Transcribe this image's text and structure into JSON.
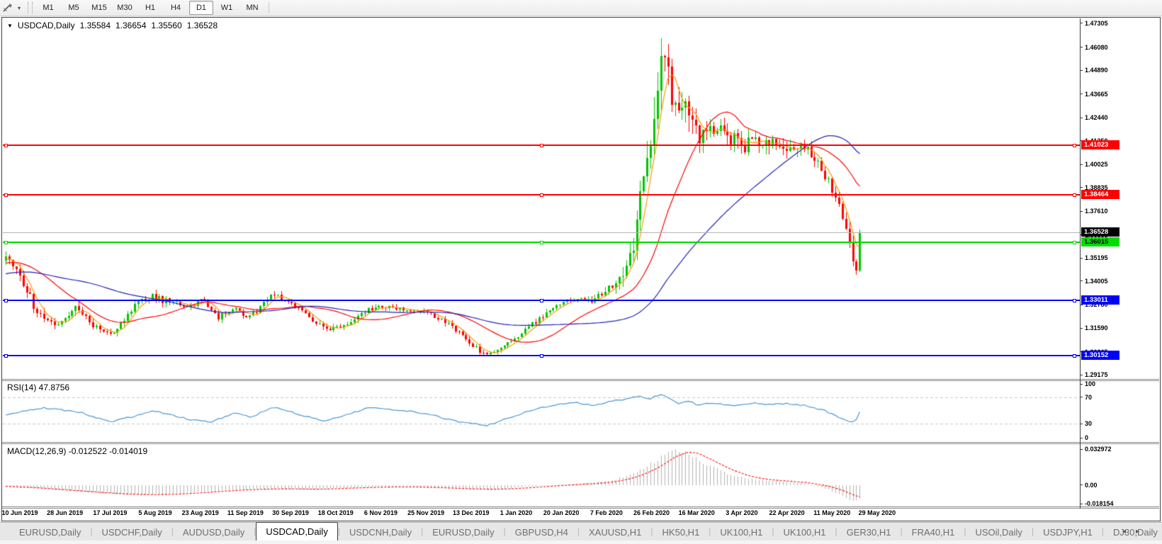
{
  "toolbar": {
    "drawing_tool_icon": "cursor-draw-icon",
    "dropdown_glyph": "▾",
    "timeframes": [
      {
        "label": "M1",
        "active": false
      },
      {
        "label": "M5",
        "active": false
      },
      {
        "label": "M15",
        "active": false
      },
      {
        "label": "M30",
        "active": false
      },
      {
        "label": "H1",
        "active": false
      },
      {
        "label": "H4",
        "active": false
      },
      {
        "label": "D1",
        "active": true
      },
      {
        "label": "W1",
        "active": false
      },
      {
        "label": "MN",
        "active": false
      }
    ]
  },
  "chart": {
    "title_symbol": "USDCAD,Daily",
    "title_open": "1.35584",
    "title_high": "1.36654",
    "title_low": "1.35560",
    "title_close": "1.36528",
    "collapse_glyph": "▼"
  },
  "rsi_panel": {
    "label": "RSI(14) 47.8756",
    "ticks": [
      "100",
      "70",
      "30",
      "0"
    ]
  },
  "macd_panel": {
    "label": "MACD(12,26,9) -0.012522 -0.014019",
    "ticks": [
      "0.032972",
      "0.00",
      "-0.018154"
    ]
  },
  "tabs": {
    "items": [
      {
        "label": "EURUSD,Daily",
        "active": false
      },
      {
        "label": "USDCHF,Daily",
        "active": false
      },
      {
        "label": "AUDUSD,Daily",
        "active": false
      },
      {
        "label": "USDCAD,Daily",
        "active": true
      },
      {
        "label": "USDCNH,Daily",
        "active": false
      },
      {
        "label": "EURUSD,Daily",
        "active": false
      },
      {
        "label": "GBPUSD,H4",
        "active": false
      },
      {
        "label": "XAUUSD,H1",
        "active": false
      },
      {
        "label": "HK50,H1",
        "active": false
      },
      {
        "label": "UK100,H1",
        "active": false
      },
      {
        "label": "UK100,H1",
        "active": false
      },
      {
        "label": "GER30,H1",
        "active": false
      },
      {
        "label": "FRA40,H1",
        "active": false
      },
      {
        "label": "USOil,Daily",
        "active": false
      },
      {
        "label": "USDJPY,H1",
        "active": false
      },
      {
        "label": "DJ30,Daily",
        "active": false
      }
    ],
    "scroll_left_glyph": "◂",
    "scroll_right_glyph": "▸"
  },
  "colors": {
    "up": "#00c400",
    "down": "#ff0000",
    "ma_fast": "#ff9900",
    "ma_mid": "#ff0000",
    "ma_slow": "#2222b8",
    "rsi_line": "#4a96d2",
    "rsi_level_dash": "#c8c8c8",
    "macd_hist": "#b2b2b2",
    "macd_signal": "#ff0000",
    "level_red": "#ff0000",
    "level_green": "#00dd00",
    "level_blue": "#0000ff",
    "current_line": "#b4b4b4",
    "current_label_bg": "#000000"
  },
  "chart_data": {
    "type": "candlestick",
    "symbol": "USDCAD",
    "timeframe": "Daily",
    "ohlc": {
      "open": 1.35584,
      "high": 1.36654,
      "low": 1.3556,
      "close": 1.36528
    },
    "price_axis": {
      "ylim": [
        1.2896,
        1.4756
      ],
      "ticks": [
        "1.47305",
        "1.46080",
        "1.44890",
        "1.43665",
        "1.42440",
        "1.41250",
        "1.40025",
        "1.38835",
        "1.37610",
        "1.36385",
        "1.35195",
        "1.34005",
        "1.32780",
        "1.31590",
        "1.30365",
        "1.29175"
      ]
    },
    "levels": [
      {
        "price": 1.41023,
        "label": "1.41023",
        "color": "#ff0000",
        "text": "#ffffff"
      },
      {
        "price": 1.38464,
        "label": "1.38464",
        "color": "#ff0000",
        "text": "#ffffff"
      },
      {
        "price": 1.36015,
        "label": "1.36015",
        "color": "#00dd00",
        "text": "#000000"
      },
      {
        "price": 1.33011,
        "label": "1.33011",
        "color": "#0000ff",
        "text": "#ffffff"
      },
      {
        "price": 1.30152,
        "label": "1.30152",
        "color": "#0000ff",
        "text": "#ffffff"
      }
    ],
    "current_price": {
      "value": 1.36528,
      "label": "1.36528"
    },
    "candles": {
      "n": 246,
      "keypoints": [
        [
          0.0,
          1.3525,
          0.0045
        ],
        [
          0.018,
          1.3415,
          0.005
        ],
        [
          0.039,
          1.322,
          0.005
        ],
        [
          0.06,
          1.318,
          0.004
        ],
        [
          0.081,
          1.3265,
          0.004
        ],
        [
          0.105,
          1.316,
          0.0035
        ],
        [
          0.126,
          1.314,
          0.0035
        ],
        [
          0.155,
          1.33,
          0.004
        ],
        [
          0.172,
          1.332,
          0.0045
        ],
        [
          0.193,
          1.329,
          0.004
        ],
        [
          0.213,
          1.3275,
          0.0035
        ],
        [
          0.234,
          1.33,
          0.004
        ],
        [
          0.247,
          1.321,
          0.0035
        ],
        [
          0.267,
          1.326,
          0.0035
        ],
        [
          0.284,
          1.3205,
          0.003
        ],
        [
          0.313,
          1.333,
          0.0035
        ],
        [
          0.334,
          1.329,
          0.003
        ],
        [
          0.354,
          1.322,
          0.003
        ],
        [
          0.375,
          1.315,
          0.003
        ],
        [
          0.396,
          1.3165,
          0.003
        ],
        [
          0.417,
          1.3235,
          0.003
        ],
        [
          0.437,
          1.3275,
          0.003
        ],
        [
          0.462,
          1.3255,
          0.0028
        ],
        [
          0.487,
          1.3245,
          0.0028
        ],
        [
          0.512,
          1.32,
          0.0028
        ],
        [
          0.533,
          1.313,
          0.003
        ],
        [
          0.549,
          1.306,
          0.003
        ],
        [
          0.564,
          1.3015,
          0.003
        ],
        [
          0.583,
          1.306,
          0.0028
        ],
        [
          0.599,
          1.311,
          0.0028
        ],
        [
          0.624,
          1.3205,
          0.003
        ],
        [
          0.649,
          1.328,
          0.003
        ],
        [
          0.666,
          1.331,
          0.0032
        ],
        [
          0.686,
          1.3295,
          0.0035
        ],
        [
          0.705,
          1.337,
          0.005
        ],
        [
          0.72,
          1.343,
          0.008
        ],
        [
          0.734,
          1.358,
          0.012
        ],
        [
          0.745,
          1.39,
          0.016
        ],
        [
          0.756,
          1.415,
          0.02
        ],
        [
          0.766,
          1.448,
          0.028
        ],
        [
          0.777,
          1.442,
          0.024
        ],
        [
          0.788,
          1.427,
          0.018
        ],
        [
          0.8,
          1.43,
          0.015
        ],
        [
          0.812,
          1.409,
          0.014
        ],
        [
          0.823,
          1.421,
          0.012
        ],
        [
          0.837,
          1.417,
          0.01
        ],
        [
          0.85,
          1.414,
          0.01
        ],
        [
          0.863,
          1.408,
          0.009
        ],
        [
          0.875,
          1.414,
          0.009
        ],
        [
          0.887,
          1.41,
          0.008
        ],
        [
          0.9,
          1.412,
          0.008
        ],
        [
          0.912,
          1.406,
          0.007
        ],
        [
          0.925,
          1.41,
          0.007
        ],
        [
          0.937,
          1.408,
          0.006
        ],
        [
          0.95,
          1.402,
          0.006
        ],
        [
          0.962,
          1.393,
          0.006
        ],
        [
          0.974,
          1.382,
          0.006
        ],
        [
          0.984,
          1.367,
          0.006
        ],
        [
          0.991,
          1.353,
          0.007
        ],
        [
          0.997,
          1.342,
          0.009
        ],
        [
          1.0,
          1.36528,
          0.014
        ]
      ]
    },
    "moving_averages": [
      {
        "period": 5,
        "color": "#ff9900"
      },
      {
        "period": 22,
        "color": "#ff0000"
      },
      {
        "period": 55,
        "color": "#2222b8"
      }
    ],
    "rsi": {
      "period": 14,
      "current": 47.8756,
      "levels": [
        70,
        30
      ],
      "ylim": [
        0,
        100
      ],
      "keypoints": [
        [
          0.0,
          44
        ],
        [
          0.043,
          54
        ],
        [
          0.085,
          48
        ],
        [
          0.122,
          33
        ],
        [
          0.147,
          40
        ],
        [
          0.172,
          50
        ],
        [
          0.197,
          42
        ],
        [
          0.217,
          36
        ],
        [
          0.242,
          33
        ],
        [
          0.267,
          46
        ],
        [
          0.288,
          40
        ],
        [
          0.313,
          55
        ],
        [
          0.342,
          45
        ],
        [
          0.373,
          33
        ],
        [
          0.402,
          45
        ],
        [
          0.427,
          55
        ],
        [
          0.455,
          50
        ],
        [
          0.48,
          48
        ],
        [
          0.508,
          40
        ],
        [
          0.534,
          32
        ],
        [
          0.564,
          27
        ],
        [
          0.587,
          38
        ],
        [
          0.62,
          52
        ],
        [
          0.649,
          60
        ],
        [
          0.667,
          63
        ],
        [
          0.687,
          57
        ],
        [
          0.707,
          64
        ],
        [
          0.725,
          67
        ],
        [
          0.742,
          72
        ],
        [
          0.753,
          67
        ],
        [
          0.766,
          74
        ],
        [
          0.778,
          69
        ],
        [
          0.788,
          61
        ],
        [
          0.8,
          65
        ],
        [
          0.812,
          57
        ],
        [
          0.823,
          62
        ],
        [
          0.84,
          59
        ],
        [
          0.856,
          57
        ],
        [
          0.875,
          62
        ],
        [
          0.89,
          59
        ],
        [
          0.906,
          61
        ],
        [
          0.925,
          59
        ],
        [
          0.941,
          57
        ],
        [
          0.958,
          50
        ],
        [
          0.973,
          41
        ],
        [
          0.986,
          34
        ],
        [
          0.994,
          31
        ],
        [
          1.0,
          47.9
        ]
      ]
    },
    "macd": {
      "params": "12,26,9",
      "macd_value": -0.012522,
      "signal_value": -0.014019,
      "axis_max": 0.032972,
      "axis_min": -0.018154,
      "keypoints": [
        [
          0.0,
          -0.0012
        ],
        [
          0.043,
          -0.0035
        ],
        [
          0.093,
          -0.0065
        ],
        [
          0.143,
          -0.0085
        ],
        [
          0.17,
          -0.0088
        ],
        [
          0.205,
          -0.0075
        ],
        [
          0.24,
          -0.0055
        ],
        [
          0.275,
          -0.004
        ],
        [
          0.309,
          -0.0032
        ],
        [
          0.35,
          -0.0038
        ],
        [
          0.392,
          -0.0028
        ],
        [
          0.433,
          -0.0016
        ],
        [
          0.475,
          -0.0018
        ],
        [
          0.516,
          -0.003
        ],
        [
          0.558,
          -0.004
        ],
        [
          0.591,
          -0.0028
        ],
        [
          0.624,
          -0.0008
        ],
        [
          0.657,
          0.0008
        ],
        [
          0.69,
          0.0022
        ],
        [
          0.715,
          0.0055
        ],
        [
          0.74,
          0.0125
        ],
        [
          0.761,
          0.0225
        ],
        [
          0.778,
          0.03
        ],
        [
          0.79,
          0.0318
        ],
        [
          0.802,
          0.027
        ],
        [
          0.819,
          0.02
        ],
        [
          0.836,
          0.0132
        ],
        [
          0.852,
          0.0085
        ],
        [
          0.873,
          0.0052
        ],
        [
          0.894,
          0.004
        ],
        [
          0.915,
          0.003
        ],
        [
          0.936,
          0.001
        ],
        [
          0.956,
          -0.0022
        ],
        [
          0.973,
          -0.0072
        ],
        [
          0.985,
          -0.0115
        ],
        [
          0.994,
          -0.0152
        ],
        [
          1.0,
          -0.0125
        ]
      ]
    },
    "dates": [
      "10 Jun 2019",
      "28 Jun 2019",
      "17 Jul 2019",
      "5 Aug 2019",
      "23 Aug 2019",
      "11 Sep 2019",
      "30 Sep 2019",
      "18 Oct 2019",
      "6 Nov 2019",
      "25 Nov 2019",
      "13 Dec 2019",
      "1 Jan 2020",
      "20 Jan 2020",
      "7 Feb 2020",
      "26 Feb 2020",
      "16 Mar 2020",
      "3 Apr 2020",
      "22 Apr 2020",
      "11 May 2020",
      "29 May 2020"
    ]
  }
}
